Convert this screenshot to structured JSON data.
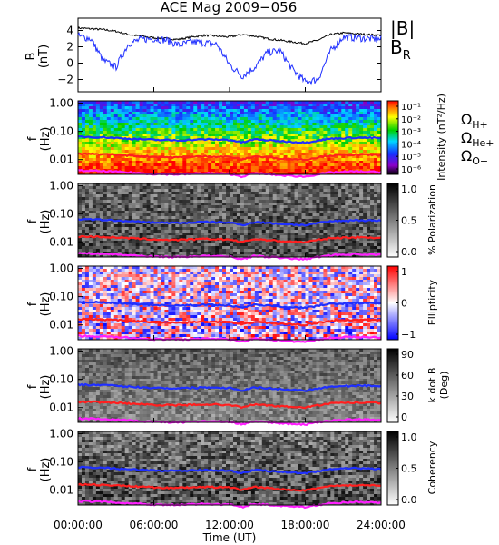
{
  "title": "ACE Mag 2009−056",
  "xaxis": {
    "label": "Time (UT)",
    "ticks": [
      "00:00:00",
      "06:00:00",
      "12:00:00",
      "18:00:00",
      "24:00:00"
    ],
    "range_hours": [
      0,
      24
    ]
  },
  "colors": {
    "b_total": "#000000",
    "b_r": "#1f2fff",
    "omega_h": "#1f2fff",
    "omega_he": "#ff1f1f",
    "omega_o": "#ff1fff"
  },
  "chart_data": [
    {
      "type": "line",
      "panel": "magnetic-field",
      "ylabel": [
        "B",
        "(nT)"
      ],
      "ylim": [
        -3.5,
        5.5
      ],
      "yticks": [
        "4",
        "2",
        "0",
        "−2"
      ],
      "ytick_values": [
        4,
        2,
        0,
        -2
      ],
      "x_hours": [
        0,
        1,
        2,
        3,
        4,
        5,
        6,
        7,
        8,
        9,
        10,
        11,
        12,
        13,
        14,
        15,
        16,
        17,
        18,
        19,
        20,
        21,
        22,
        23,
        24
      ],
      "series": [
        {
          "name": "|B|",
          "values": [
            4.3,
            4.2,
            4.1,
            3.9,
            3.5,
            3.3,
            3.1,
            3.0,
            2.9,
            3.2,
            3.4,
            3.3,
            3.2,
            3.5,
            3.3,
            3.0,
            2.8,
            2.6,
            2.4,
            2.8,
            3.5,
            3.7,
            3.6,
            3.5,
            3.4
          ]
        },
        {
          "name": "B_R",
          "values": [
            3.3,
            3.0,
            0.3,
            -0.5,
            2.4,
            2.9,
            3.0,
            2.8,
            2.2,
            2.6,
            2.5,
            2.3,
            -0.2,
            -1.6,
            -0.5,
            1.3,
            1.5,
            -0.8,
            -2.3,
            -2.0,
            1.5,
            3.2,
            3.1,
            3.0,
            2.9
          ]
        }
      ]
    },
    {
      "type": "heatmap",
      "panel": "intensity",
      "ylabel": [
        "f",
        "(Hz)"
      ],
      "yticks": [
        "1.00",
        "0.10",
        "0.01"
      ],
      "colorbar": {
        "label": "Intensity (nT²/Hz)",
        "ticks": [
          "10⁻¹",
          "10⁻²",
          "10⁻³",
          "10⁻⁴",
          "10⁻⁵",
          "10⁻⁶"
        ]
      }
    },
    {
      "type": "heatmap",
      "panel": "polarization",
      "ylabel": [
        "f",
        "(Hz)"
      ],
      "yticks": [
        "1.00",
        "0.10",
        "0.01"
      ],
      "colorbar": {
        "label": "% Polarization",
        "ticks": [
          "1.0",
          "0.5",
          "0.0"
        ]
      }
    },
    {
      "type": "heatmap",
      "panel": "ellipticity",
      "ylabel": [
        "f",
        "(Hz)"
      ],
      "yticks": [
        "1.00",
        "0.10",
        "0.01"
      ],
      "colorbar": {
        "label": "Ellipticity",
        "ticks": [
          "1",
          "0",
          "−1"
        ]
      }
    },
    {
      "type": "heatmap",
      "panel": "k-dot-b",
      "ylabel": [
        "f",
        "(Hz)"
      ],
      "yticks": [
        "1.00",
        "0.10",
        "0.01"
      ],
      "colorbar": {
        "label": "k dot B",
        "label2": "(Deg)",
        "ticks": [
          "90",
          "60",
          "30",
          "0"
        ]
      }
    },
    {
      "type": "heatmap",
      "panel": "coherency",
      "ylabel": [
        "f",
        "(Hz)"
      ],
      "yticks": [
        "1.00",
        "0.10",
        "0.01"
      ],
      "colorbar": {
        "label": "Coherency",
        "ticks": [
          "1.0",
          "0.5",
          "0.0"
        ]
      }
    }
  ],
  "gyrofrequencies": {
    "x_hours": [
      0,
      2,
      4,
      6,
      8,
      10,
      12,
      13,
      14,
      16,
      18,
      20,
      22,
      24
    ],
    "omega_h": [
      0.065,
      0.062,
      0.055,
      0.05,
      0.048,
      0.052,
      0.05,
      0.04,
      0.052,
      0.045,
      0.04,
      0.055,
      0.06,
      0.058
    ],
    "omega_he": [
      0.016,
      0.0155,
      0.014,
      0.0125,
      0.012,
      0.013,
      0.0125,
      0.01,
      0.013,
      0.011,
      0.01,
      0.014,
      0.015,
      0.0145
    ],
    "omega_o": [
      0.0041,
      0.0039,
      0.0035,
      0.0031,
      0.003,
      0.0033,
      0.0031,
      0.0025,
      0.0033,
      0.0028,
      0.0025,
      0.0035,
      0.0038,
      0.0036
    ]
  },
  "legend": {
    "b_total": "|B|",
    "b_r_main": "B",
    "b_r_sub": "R",
    "omega_h_main": "Ω",
    "omega_h_sub": "H+",
    "omega_he_main": "Ω",
    "omega_he_sub": "He+",
    "omega_o_main": "Ω",
    "omega_o_sub": "O+"
  }
}
